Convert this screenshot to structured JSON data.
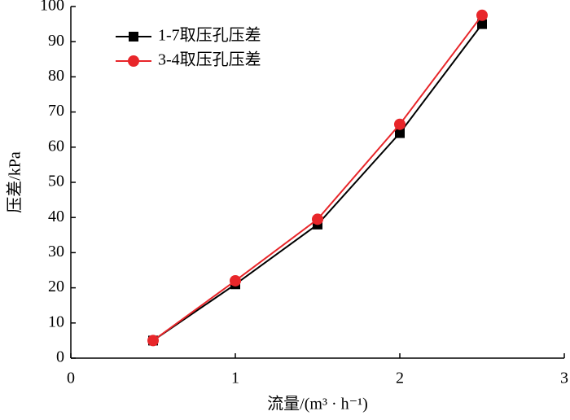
{
  "chart_data": {
    "type": "line",
    "x_label": "流量/(m³ · h⁻¹)",
    "y_label": "压差/kPa",
    "x": [
      0.5,
      1,
      1.5,
      2,
      2.5
    ],
    "series": [
      {
        "name": "1-7取压孔压差",
        "color": "#000000",
        "marker": "square",
        "values": [
          5,
          21,
          38,
          64,
          95
        ]
      },
      {
        "name": "3-4取压孔压差",
        "color": "#e8262a",
        "marker": "circle",
        "values": [
          5,
          22,
          39.5,
          66.5,
          97.5
        ]
      }
    ],
    "xlim": [
      0,
      3
    ],
    "xticks": [
      0,
      1,
      2,
      3
    ],
    "ylim": [
      0,
      100
    ],
    "yticks": [
      0,
      10,
      20,
      30,
      40,
      50,
      60,
      70,
      80,
      90,
      100
    ],
    "legend": "upper left"
  }
}
